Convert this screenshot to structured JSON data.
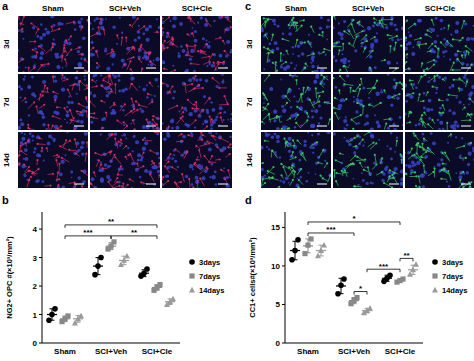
{
  "panels": [
    {
      "panel": "a",
      "columns": [
        "Sham",
        "SCI+Veh",
        "SCI+Cle"
      ],
      "rows": [
        "3d",
        "7d",
        "14d"
      ],
      "colors": [
        "#e0306a",
        "#3a44c8"
      ]
    },
    {
      "panel": "c",
      "columns": [
        "Sham",
        "SCI+Veh",
        "SCI+Cle"
      ],
      "rows": [
        "3d",
        "7d",
        "14d"
      ],
      "colors": [
        "#39d06a",
        "#3a44c8"
      ]
    }
  ],
  "chart_data": [
    {
      "panel": "b",
      "type": "dot",
      "y_label": "NG2+ OPC #(×10³/mm²)",
      "categories": [
        "Sham",
        "SCI+Veh",
        "SCI+Cle"
      ],
      "ylim": [
        0,
        4.6
      ],
      "yticks": [
        0,
        1,
        2,
        3,
        4
      ],
      "legend": "right",
      "series": [
        {
          "name": "3days",
          "color": "#000000",
          "marker": "circle",
          "values": [
            1.0,
            2.7,
            2.45
          ],
          "error": [
            0.2,
            0.3,
            0.12
          ],
          "points": [
            [
              0.8,
              1.0,
              1.2
            ],
            [
              2.4,
              2.7,
              3.0
            ],
            [
              2.35,
              2.45,
              2.6
            ]
          ]
        },
        {
          "name": "7days",
          "color": "#888888",
          "marker": "square",
          "values": [
            0.85,
            3.4,
            1.95
          ],
          "error": [
            0.1,
            0.12,
            0.1
          ],
          "points": [
            [
              0.75,
              0.85,
              0.95
            ],
            [
              3.3,
              3.4,
              3.55
            ],
            [
              1.85,
              1.95,
              2.05
            ]
          ]
        },
        {
          "name": "14days",
          "color": "#9a9a9a",
          "marker": "triangle",
          "values": [
            0.85,
            2.9,
            1.45
          ],
          "error": [
            0.12,
            0.15,
            0.1
          ],
          "points": [
            [
              0.7,
              0.85,
              0.95
            ],
            [
              2.75,
              2.9,
              3.05
            ],
            [
              1.35,
              1.45,
              1.55
            ]
          ]
        }
      ],
      "significance": [
        {
          "label": "***",
          "from": [
            0,
            1
          ],
          "to": [
            1,
            1
          ]
        },
        {
          "label": "**",
          "from": [
            1,
            1
          ],
          "to": [
            2,
            1
          ]
        },
        {
          "label": "**",
          "from": [
            0,
            1
          ],
          "to": [
            2,
            1
          ]
        }
      ]
    },
    {
      "panel": "d",
      "type": "dot",
      "y_label": "CC1+ cells#(×10³/mm²)",
      "categories": [
        "Sham",
        "SCI+Veh",
        "SCI+Cle"
      ],
      "ylim": [
        0,
        17
      ],
      "yticks": [
        0,
        5,
        10,
        15
      ],
      "legend": "right",
      "series": [
        {
          "name": "3days",
          "color": "#000000",
          "marker": "circle",
          "values": [
            12.0,
            7.4,
            8.4
          ],
          "error": [
            1.2,
            1.0,
            0.4
          ],
          "points": [
            [
              10.8,
              12.0,
              13.4
            ],
            [
              6.4,
              7.5,
              8.3
            ],
            [
              8.0,
              8.4,
              8.8
            ]
          ]
        },
        {
          "name": "7days",
          "color": "#888888",
          "marker": "square",
          "values": [
            12.6,
            5.5,
            8.1
          ],
          "error": [
            0.9,
            0.4,
            0.2
          ],
          "points": [
            [
              11.6,
              12.7,
              13.5
            ],
            [
              5.1,
              5.5,
              5.9
            ],
            [
              7.9,
              8.1,
              8.3
            ]
          ]
        },
        {
          "name": "14days",
          "color": "#9a9a9a",
          "marker": "triangle",
          "values": [
            12.0,
            4.2,
            9.5
          ],
          "error": [
            0.7,
            0.3,
            0.6
          ],
          "points": [
            [
              11.3,
              12.0,
              12.7
            ],
            [
              3.9,
              4.2,
              4.5
            ],
            [
              8.9,
              9.5,
              10.2
            ]
          ]
        }
      ],
      "significance": [
        {
          "label": "*",
          "from": [
            1,
            1
          ],
          "to": [
            1,
            2
          ]
        },
        {
          "label": "**",
          "from": [
            2,
            1
          ],
          "to": [
            2,
            2
          ]
        },
        {
          "label": "***",
          "from": [
            0,
            1
          ],
          "to": [
            1,
            1
          ]
        },
        {
          "label": "***",
          "from": [
            1,
            2
          ],
          "to": [
            2,
            1
          ]
        },
        {
          "label": "*",
          "from": [
            0,
            1
          ],
          "to": [
            2,
            1
          ]
        }
      ]
    }
  ]
}
